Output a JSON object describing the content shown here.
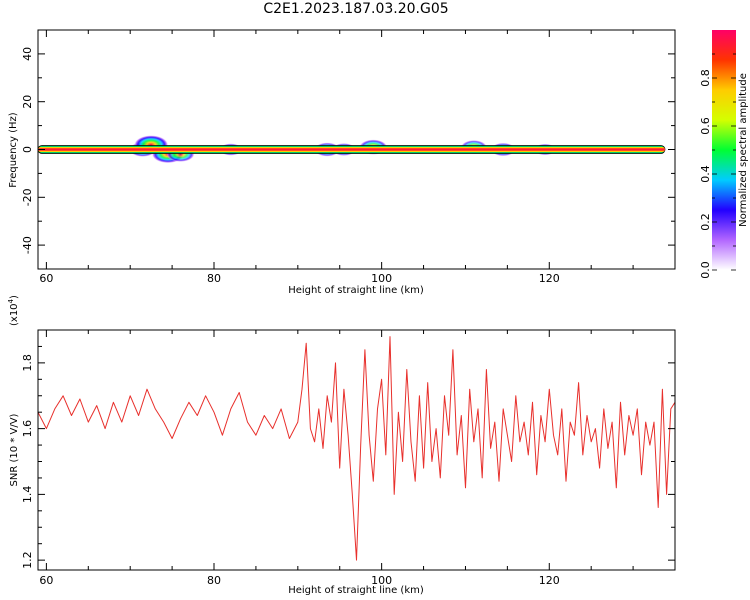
{
  "title": "C2E1.2023.187.03.20.G05",
  "chart_data": [
    {
      "type": "heatmap",
      "xlabel": "Height of straight line (km)",
      "ylabel": "Frequency (Hz)",
      "xlim": [
        59,
        135
      ],
      "ylim": [
        -50,
        50
      ],
      "x_ticks": [
        60,
        80,
        100,
        120
      ],
      "x_tick_labels": [
        "60",
        "80",
        "100",
        "120"
      ],
      "y_ticks": [
        -40,
        -20,
        0,
        20,
        40
      ],
      "y_tick_labels": [
        "-40",
        "-20",
        "0",
        "20",
        "40"
      ],
      "grid": false,
      "band_center_hz": 0,
      "blobs": [
        {
          "x": 71.5,
          "y": 0,
          "amp": 0.55
        },
        {
          "x": 72.5,
          "y": 2,
          "amp": 0.9
        },
        {
          "x": 74.5,
          "y": -2,
          "amp": 0.8
        },
        {
          "x": 76.0,
          "y": -2,
          "amp": 0.6
        },
        {
          "x": 82.0,
          "y": 0,
          "amp": 0.35
        },
        {
          "x": 93.5,
          "y": 0,
          "amp": 0.5
        },
        {
          "x": 95.5,
          "y": 0,
          "amp": 0.4
        },
        {
          "x": 99.0,
          "y": 1,
          "amp": 0.6
        },
        {
          "x": 111.0,
          "y": 1,
          "amp": 0.5
        },
        {
          "x": 114.5,
          "y": 0,
          "amp": 0.45
        },
        {
          "x": 119.5,
          "y": 0,
          "amp": 0.3
        }
      ],
      "colorbar": {
        "label": "Normalized spectral amplitude",
        "range": [
          0,
          1
        ],
        "ticks": [
          0.0,
          0.2,
          0.4,
          0.6,
          0.8
        ],
        "tick_labels": [
          "0.0",
          "0.2",
          "0.4",
          "0.6",
          "0.8"
        ],
        "colors": [
          "#ffffff",
          "#b266ff",
          "#2200ff",
          "#00ccff",
          "#00ff33",
          "#d4ff00",
          "#ffcc00",
          "#ff3300",
          "#ff0066"
        ]
      }
    },
    {
      "type": "line",
      "xlabel": "Height of straight line (km)",
      "ylabel": "SNR (10 * V/V)",
      "y_multiplier_label": "(x10",
      "y_multiplier_exp": "4",
      "y_multiplier_close": ")",
      "xlim": [
        59,
        135
      ],
      "ylim": [
        1.17,
        1.9
      ],
      "x_ticks": [
        60,
        80,
        100,
        120
      ],
      "x_tick_labels": [
        "60",
        "80",
        "100",
        "120"
      ],
      "y_ticks": [
        1.2,
        1.4,
        1.6,
        1.8
      ],
      "y_tick_labels": [
        "1.2",
        "1.4",
        "1.6",
        "1.8"
      ],
      "grid": false,
      "series": [
        {
          "color": "#e8302c",
          "x": [
            59.0,
            60.0,
            61.0,
            62.0,
            63.0,
            64.0,
            65.0,
            66.0,
            67.0,
            68.0,
            69.0,
            70.0,
            71.0,
            72.0,
            73.0,
            74.0,
            75.0,
            76.0,
            77.0,
            78.0,
            79.0,
            80.0,
            81.0,
            82.0,
            83.0,
            84.0,
            85.0,
            86.0,
            87.0,
            88.0,
            89.0,
            90.0,
            90.5,
            91.0,
            91.5,
            92.0,
            92.5,
            93.0,
            93.5,
            94.0,
            94.5,
            95.0,
            95.5,
            96.0,
            96.5,
            97.0,
            97.5,
            98.0,
            98.5,
            99.0,
            99.5,
            100.0,
            100.5,
            101.0,
            101.5,
            102.0,
            102.5,
            103.0,
            103.5,
            104.0,
            104.5,
            105.0,
            105.5,
            106.0,
            106.5,
            107.0,
            107.5,
            108.0,
            108.5,
            109.0,
            109.5,
            110.0,
            110.5,
            111.0,
            111.5,
            112.0,
            112.5,
            113.0,
            113.5,
            114.0,
            114.5,
            115.0,
            115.5,
            116.0,
            116.5,
            117.0,
            117.5,
            118.0,
            118.5,
            119.0,
            119.5,
            120.0,
            120.5,
            121.0,
            121.5,
            122.0,
            122.5,
            123.0,
            123.5,
            124.0,
            124.5,
            125.0,
            125.5,
            126.0,
            126.5,
            127.0,
            127.5,
            128.0,
            128.5,
            129.0,
            129.5,
            130.0,
            130.5,
            131.0,
            131.5,
            132.0,
            132.5,
            133.0,
            133.5,
            134.0,
            134.5,
            135.0
          ],
          "values": [
            1.65,
            1.6,
            1.66,
            1.7,
            1.64,
            1.69,
            1.62,
            1.67,
            1.6,
            1.68,
            1.62,
            1.7,
            1.64,
            1.72,
            1.66,
            1.62,
            1.57,
            1.63,
            1.68,
            1.64,
            1.7,
            1.65,
            1.58,
            1.66,
            1.71,
            1.62,
            1.58,
            1.64,
            1.6,
            1.66,
            1.57,
            1.62,
            1.72,
            1.86,
            1.6,
            1.56,
            1.66,
            1.54,
            1.7,
            1.62,
            1.8,
            1.48,
            1.72,
            1.58,
            1.4,
            1.2,
            1.55,
            1.84,
            1.58,
            1.44,
            1.66,
            1.75,
            1.52,
            1.88,
            1.4,
            1.65,
            1.5,
            1.78,
            1.56,
            1.44,
            1.7,
            1.48,
            1.74,
            1.5,
            1.6,
            1.45,
            1.7,
            1.58,
            1.84,
            1.52,
            1.64,
            1.42,
            1.72,
            1.56,
            1.66,
            1.45,
            1.78,
            1.54,
            1.62,
            1.44,
            1.66,
            1.58,
            1.5,
            1.7,
            1.56,
            1.62,
            1.52,
            1.68,
            1.46,
            1.64,
            1.56,
            1.72,
            1.58,
            1.52,
            1.66,
            1.44,
            1.62,
            1.58,
            1.74,
            1.52,
            1.64,
            1.56,
            1.6,
            1.48,
            1.66,
            1.54,
            1.62,
            1.42,
            1.68,
            1.52,
            1.64,
            1.58,
            1.66,
            1.46,
            1.62,
            1.55,
            1.62,
            1.36,
            1.72,
            1.4,
            1.66,
            1.68
          ]
        }
      ]
    }
  ]
}
